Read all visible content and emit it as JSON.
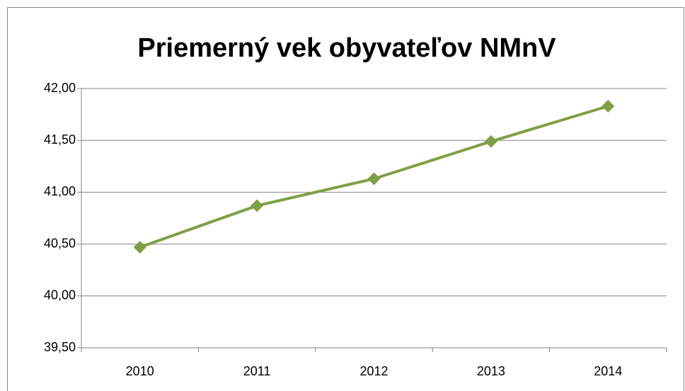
{
  "chart_data": {
    "type": "line",
    "title": "Priemerný vek obyvateľov NMnV",
    "categories": [
      "2010",
      "2011",
      "2012",
      "2013",
      "2014"
    ],
    "series": [
      {
        "name": "Priemerný vek",
        "color": "#7f9f45",
        "values": [
          40.47,
          40.87,
          41.13,
          41.49,
          41.83
        ]
      }
    ],
    "ylim": [
      39.5,
      42
    ],
    "yticks": [
      {
        "value": 39.5,
        "label": "39,50"
      },
      {
        "value": 40,
        "label": "40,00"
      },
      {
        "value": 40.5,
        "label": "40,50"
      },
      {
        "value": 41,
        "label": "41,00"
      },
      {
        "value": 41.5,
        "label": "41,50"
      },
      {
        "value": 42,
        "label": "42,00"
      }
    ],
    "grid": true
  }
}
